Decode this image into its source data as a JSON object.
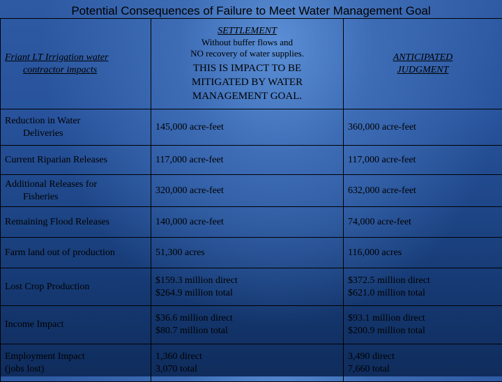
{
  "title": "Potential Consequences of Failure to Meet Water Management Goal",
  "header": {
    "col1": [
      "Friant LT Irrigation water",
      "contractor impacts"
    ],
    "col2_title": "SETTLEMENT",
    "col2_sub": [
      "Without buffer flows and",
      "NO recovery of water supplies."
    ],
    "col2_note": [
      "THIS IS IMPACT TO BE",
      "MITIGATED BY WATER",
      "MANAGEMENT GOAL."
    ],
    "col3": [
      "ANTICIPATED",
      "JUDGMENT"
    ]
  },
  "rows": [
    {
      "label": [
        "Reduction in Water",
        "Deliveries"
      ],
      "settlement": [
        "145,000 acre-feet"
      ],
      "judgment": [
        "360,000 acre-feet"
      ]
    },
    {
      "label": [
        "Current Riparian Releases"
      ],
      "settlement": [
        "117,000 acre-feet"
      ],
      "judgment": [
        "117,000 acre-feet"
      ]
    },
    {
      "label": [
        "Additional Releases for",
        "Fisheries"
      ],
      "settlement": [
        "320,000 acre-feet"
      ],
      "judgment": [
        "632,000 acre-feet"
      ]
    },
    {
      "label": [
        "Remaining Flood Releases"
      ],
      "settlement": [
        "140,000 acre-feet"
      ],
      "judgment": [
        "74,000 acre-feet"
      ]
    },
    {
      "label": [
        "Farm land out of production"
      ],
      "settlement": [
        "51,300 acres"
      ],
      "judgment": [
        "116,000 acres"
      ]
    },
    {
      "label": [
        "Lost Crop Production"
      ],
      "settlement": [
        "$159.3 million direct",
        "$264.9 million total"
      ],
      "judgment": [
        "$372.5 million direct",
        "$621.0 million total"
      ]
    },
    {
      "label": [
        "Income Impact"
      ],
      "settlement": [
        "$36.6 million direct",
        "$80.7 million total"
      ],
      "judgment": [
        "$93.1 million direct",
        "$200.9 million total"
      ]
    },
    {
      "label": [
        "Employment Impact",
        "(jobs lost)"
      ],
      "settlement": [
        "1,360 direct",
        "3,070 total"
      ],
      "judgment": [
        "3,490 direct",
        "7,660 total"
      ]
    }
  ]
}
